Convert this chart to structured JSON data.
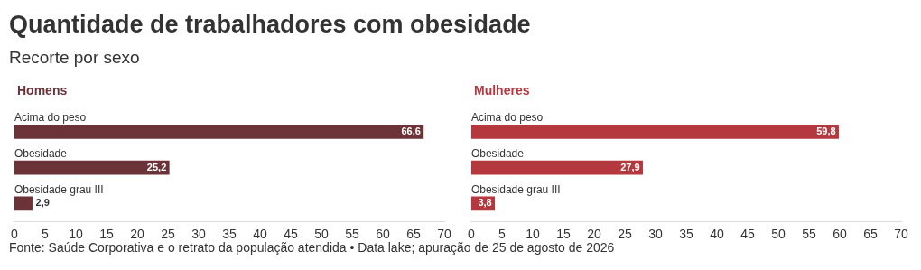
{
  "chart_data": [
    {
      "type": "other",
      "title": "Quantidade de trabalhadores com obesidade",
      "subtitle": "Recorte por sexo",
      "annotations": [
        "Fonte: Saúde Corporativa e o retrato da população atendida • Data lake; apuração de 25 de agosto de 2026"
      ]
    },
    {
      "type": "bar",
      "orientation": "horizontal",
      "title": "Homens",
      "categories": [
        "Acima do peso",
        "Obesidade",
        "Obesidade grau III"
      ],
      "values": [
        66.6,
        25.2,
        2.9
      ],
      "value_labels": [
        "66,6",
        "25,2",
        "2,9"
      ],
      "color": "#6b3338",
      "xlim": [
        0,
        70
      ],
      "xticks": [
        0,
        5,
        10,
        15,
        20,
        25,
        30,
        35,
        40,
        45,
        50,
        55,
        60,
        65,
        70
      ],
      "tick_labels": "x",
      "grid": false,
      "legend": false
    },
    {
      "type": "bar",
      "orientation": "horizontal",
      "title": "Mulheres",
      "categories": [
        "Acima do peso",
        "Obesidade",
        "Obesidade grau III"
      ],
      "values": [
        59.8,
        27.9,
        3.8
      ],
      "value_labels": [
        "59,8",
        "27,9",
        "3,8"
      ],
      "color": "#b5383f",
      "xlim": [
        0,
        70
      ],
      "xticks": [
        0,
        5,
        10,
        15,
        20,
        25,
        30,
        35,
        40,
        45,
        50,
        55,
        60,
        65,
        70
      ],
      "tick_labels": "x",
      "grid": false,
      "legend": false
    }
  ]
}
